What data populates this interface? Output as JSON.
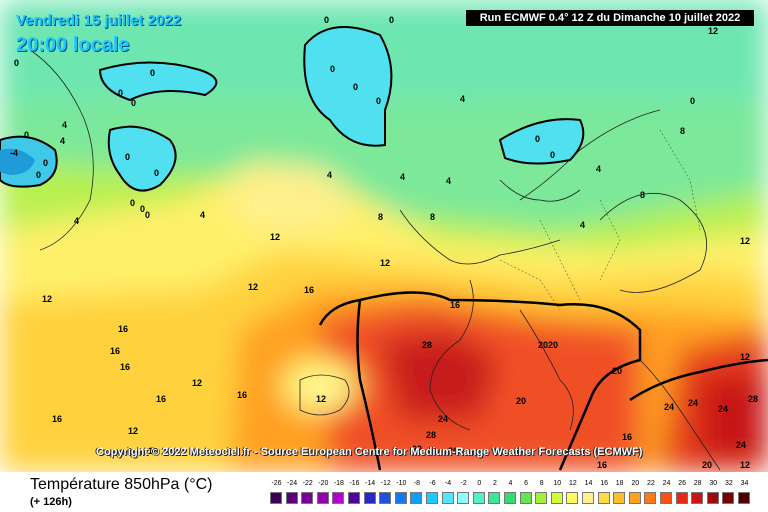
{
  "header": {
    "day": "Vendredi 15 juillet 2022",
    "time": "20:00 locale",
    "run": "Run ECMWF 0.4° 12 Z du Dimanche 10 juillet 2022"
  },
  "copyright": "Copyright © 2022 Meteociel.fr - Source European Centre for Medium-Range Weather Forecasts (ECMWF)",
  "footer": {
    "title": "Température 850hPa (°C)",
    "subtitle": "(+ 126h)"
  },
  "scale": {
    "ticks": [
      "-26",
      "-24",
      "-22",
      "-20",
      "-18",
      "-16",
      "-14",
      "-12",
      "-10",
      "-8",
      "-6",
      "-4",
      "-2",
      "0",
      "2",
      "4",
      "6",
      "8",
      "10",
      "12",
      "14",
      "16",
      "18",
      "20",
      "22",
      "24",
      "26",
      "28",
      "30",
      "32",
      "34"
    ],
    "colors": [
      "#3c0050",
      "#5a0078",
      "#780096",
      "#9600b4",
      "#b400d2",
      "#5000a0",
      "#2828c8",
      "#1e50dc",
      "#1478f0",
      "#0aa0ff",
      "#1ec8ff",
      "#50e6ff",
      "#8cffff",
      "#50f0c8",
      "#3ce696",
      "#32dc6e",
      "#64e650",
      "#a0f03c",
      "#d2fa3c",
      "#fffa5a",
      "#fff08c",
      "#ffdc46",
      "#ffbe28",
      "#ffa01e",
      "#ff7814",
      "#ff5014",
      "#e62814",
      "#c81414",
      "#a00a0a",
      "#780000",
      "#500000"
    ]
  },
  "map_labels": [
    "0",
    "0",
    "0",
    "0",
    "0",
    "0",
    "0",
    "0",
    "0",
    "0",
    "0",
    "0",
    "-4",
    "0",
    "0",
    "0",
    "0",
    "0",
    "0",
    "0",
    "0",
    "4",
    "4",
    "4",
    "4",
    "4",
    "4",
    "4",
    "4",
    "4",
    "4",
    "8",
    "8",
    "8",
    "8",
    "12",
    "12",
    "12",
    "12",
    "12",
    "12",
    "12",
    "12",
    "16",
    "16",
    "16",
    "16",
    "16",
    "16",
    "16",
    "16",
    "16",
    "16",
    "16",
    "28",
    "28",
    "24",
    "24",
    "24",
    "24",
    "24",
    "20",
    "20",
    "20",
    "20",
    "20",
    "20",
    "20",
    "28",
    "12",
    "12",
    "12"
  ]
}
